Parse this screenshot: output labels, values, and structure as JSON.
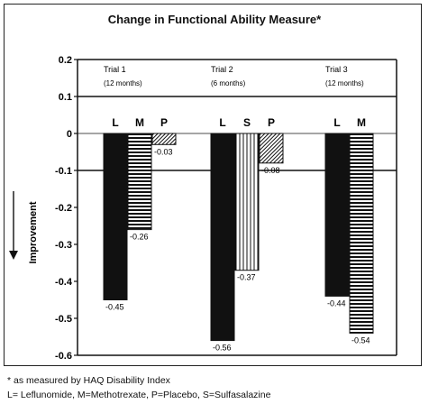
{
  "chart_data": {
    "type": "bar",
    "title": "Change in Functional Ability Measure*",
    "ylabel": "Improvement",
    "ylim": [
      -0.6,
      0.2
    ],
    "y_ticks": [
      "0.2",
      "0.1",
      "0",
      "-0.1",
      "-0.2",
      "-0.3",
      "-0.4",
      "-0.5",
      "-0.6"
    ],
    "y_tick_values": [
      0.2,
      0.1,
      0,
      -0.1,
      -0.2,
      -0.3,
      -0.4,
      -0.5,
      -0.6
    ],
    "gridlines_at": [
      0.1,
      -0.1,
      -0.6
    ],
    "groups": [
      {
        "name": "Trial 1",
        "duration": "(12 months)",
        "bars": [
          {
            "letter": "L",
            "value": -0.45,
            "label": "-0.45",
            "pattern": "solid"
          },
          {
            "letter": "M",
            "value": -0.26,
            "label": "-0.26",
            "pattern": "hlines"
          },
          {
            "letter": "P",
            "value": -0.03,
            "label": "-0.03",
            "pattern": "hatch"
          }
        ]
      },
      {
        "name": "Trial 2",
        "duration": "(6 months)",
        "bars": [
          {
            "letter": "L",
            "value": -0.56,
            "label": "-0.56",
            "pattern": "solid"
          },
          {
            "letter": "S",
            "value": -0.37,
            "label": "-0.37",
            "pattern": "vlines"
          },
          {
            "letter": "P",
            "value": -0.08,
            "label": "-0.08",
            "pattern": "hatch"
          }
        ]
      },
      {
        "name": "Trial 3",
        "duration": "(12 months)",
        "bars": [
          {
            "letter": "L",
            "value": -0.44,
            "label": "-0.44",
            "pattern": "solid"
          },
          {
            "letter": "M",
            "value": -0.54,
            "label": "-0.54",
            "pattern": "hlines"
          }
        ]
      }
    ]
  },
  "footnotes": {
    "line1": "* as measured by HAQ Disability Index",
    "line2": "L= Leflunomide, M=Methotrexate, P=Placebo, S=Sulfasalazine"
  },
  "colors": {
    "ink": "#111111",
    "frame": "#222222"
  }
}
